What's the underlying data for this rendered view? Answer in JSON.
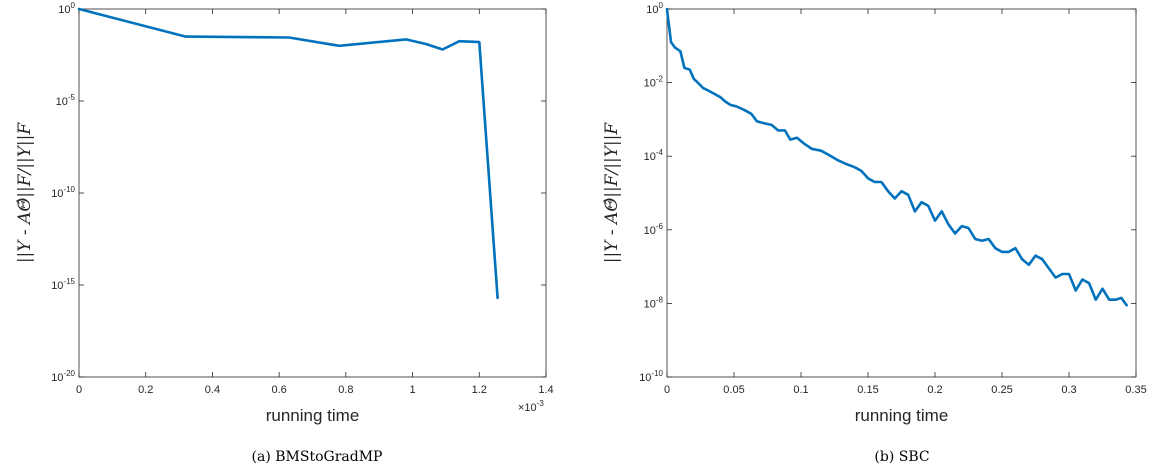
{
  "chart_data": [
    {
      "type": "line",
      "caption": "(a) BMStoGradMP",
      "xlabel": "running time",
      "ylabel": "||Y - AΘ̂||F/||Y||F",
      "x_multiplier_label": "×10^-3",
      "xlim": [
        0,
        1.4
      ],
      "ylim_exp": [
        -20,
        0
      ],
      "yscale": "log",
      "grid": false,
      "x_ticks": [
        "0",
        "0.2",
        "0.4",
        "0.6",
        "0.8",
        "1",
        "1.2",
        "1.4"
      ],
      "y_ticks": [
        {
          "base": "10",
          "exp": "0"
        },
        {
          "base": "10",
          "exp": "-5"
        },
        {
          "base": "10",
          "exp": "-10"
        },
        {
          "base": "10",
          "exp": "-15"
        },
        {
          "base": "10",
          "exp": "-20"
        }
      ],
      "color": "#0072BD",
      "series": [
        {
          "x": [
            0,
            0.32,
            0.63,
            0.78,
            0.98,
            1.04,
            1.09,
            1.14,
            1.2,
            1.255
          ],
          "log10_y": [
            0,
            -1.5,
            -1.55,
            -2.0,
            -1.65,
            -1.9,
            -2.2,
            -1.75,
            -1.8,
            -15.7
          ]
        }
      ]
    },
    {
      "type": "line",
      "caption": "(b) SBC",
      "xlabel": "running time",
      "ylabel": "||Y - AΘ̂||F/||Y||F",
      "xlim": [
        0,
        0.35
      ],
      "ylim_exp": [
        -10,
        0
      ],
      "yscale": "log",
      "grid": false,
      "x_ticks": [
        "0",
        "0.05",
        "0.1",
        "0.15",
        "0.2",
        "0.25",
        "0.3",
        "0.35"
      ],
      "y_ticks": [
        {
          "base": "10",
          "exp": "0"
        },
        {
          "base": "10",
          "exp": "-2"
        },
        {
          "base": "10",
          "exp": "-4"
        },
        {
          "base": "10",
          "exp": "-6"
        },
        {
          "base": "10",
          "exp": "-8"
        },
        {
          "base": "10",
          "exp": "-10"
        }
      ],
      "color": "#0072BD",
      "series": [
        {
          "x": [
            0,
            0.003,
            0.006,
            0.01,
            0.013,
            0.017,
            0.02,
            0.023,
            0.027,
            0.03,
            0.035,
            0.04,
            0.043,
            0.047,
            0.052,
            0.058,
            0.063,
            0.067,
            0.072,
            0.078,
            0.083,
            0.088,
            0.092,
            0.097,
            0.102,
            0.108,
            0.115,
            0.12,
            0.127,
            0.133,
            0.14,
            0.145,
            0.15,
            0.155,
            0.16,
            0.165,
            0.17,
            0.175,
            0.18,
            0.185,
            0.19,
            0.195,
            0.2,
            0.205,
            0.21,
            0.215,
            0.22,
            0.225,
            0.23,
            0.235,
            0.24,
            0.245,
            0.25,
            0.255,
            0.26,
            0.265,
            0.27,
            0.275,
            0.28,
            0.285,
            0.29,
            0.295,
            0.3,
            0.305,
            0.31,
            0.315,
            0.32,
            0.325,
            0.33,
            0.335,
            0.339,
            0.343
          ],
          "log10_y": [
            0,
            -0.9,
            -1.05,
            -1.15,
            -1.6,
            -1.65,
            -1.9,
            -2.0,
            -2.15,
            -2.2,
            -2.3,
            -2.4,
            -2.5,
            -2.6,
            -2.65,
            -2.75,
            -2.85,
            -3.05,
            -3.1,
            -3.15,
            -3.3,
            -3.3,
            -3.55,
            -3.5,
            -3.65,
            -3.8,
            -3.85,
            -3.95,
            -4.1,
            -4.2,
            -4.3,
            -4.4,
            -4.6,
            -4.7,
            -4.7,
            -4.95,
            -5.15,
            -4.95,
            -5.05,
            -5.5,
            -5.25,
            -5.35,
            -5.75,
            -5.5,
            -5.85,
            -6.1,
            -5.9,
            -5.95,
            -6.25,
            -6.3,
            -6.25,
            -6.5,
            -6.6,
            -6.6,
            -6.5,
            -6.8,
            -6.95,
            -6.7,
            -6.8,
            -7.05,
            -7.3,
            -7.2,
            -7.2,
            -7.65,
            -7.35,
            -7.45,
            -7.9,
            -7.6,
            -7.9,
            -7.9,
            -7.85,
            -8.05
          ]
        }
      ]
    }
  ]
}
